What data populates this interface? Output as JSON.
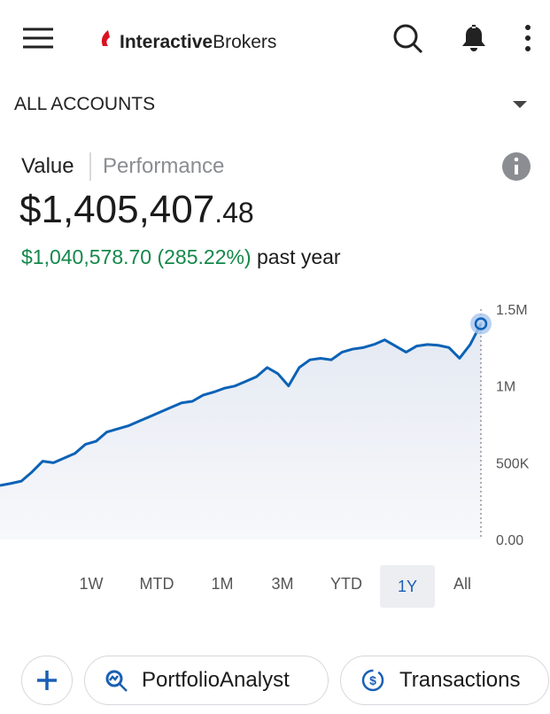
{
  "header": {
    "logo_bold": "Interactive",
    "logo_regular": "Brokers"
  },
  "account_selector": "ALL ACCOUNTS",
  "tabs": [
    "Value",
    "Performance"
  ],
  "balance": {
    "main": "$1,405,407",
    "cents": ".48"
  },
  "change": {
    "amount": "$1,040,578.70 (285.22%)",
    "label": "past year"
  },
  "chart_data": {
    "type": "line",
    "color": "#0b62b6",
    "values": [
      352000,
      365000,
      380000,
      440000,
      510000,
      500000,
      530000,
      560000,
      620000,
      640000,
      700000,
      720000,
      740000,
      770000,
      800000,
      830000,
      860000,
      890000,
      900000,
      940000,
      960000,
      985000,
      1000000,
      1030000,
      1060000,
      1120000,
      1080000,
      1000000,
      1120000,
      1170000,
      1180000,
      1170000,
      1220000,
      1240000,
      1250000,
      1270000,
      1300000,
      1260000,
      1220000,
      1260000,
      1270000,
      1265000,
      1250000,
      1180000,
      1270000,
      1405000
    ],
    "ylim": [
      0,
      1500000
    ],
    "yticks": [
      {
        "value": 1500000,
        "label": "1.5M"
      },
      {
        "value": 1000000,
        "label": "1M"
      },
      {
        "value": 500000,
        "label": "500K"
      },
      {
        "value": 0,
        "label": "0.00"
      }
    ]
  },
  "ranges": [
    "1W",
    "MTD",
    "1M",
    "3M",
    "YTD",
    "1Y",
    "All"
  ],
  "selected_range_index": 5,
  "actions": [
    "PortfolioAnalyst",
    "Transactions"
  ]
}
